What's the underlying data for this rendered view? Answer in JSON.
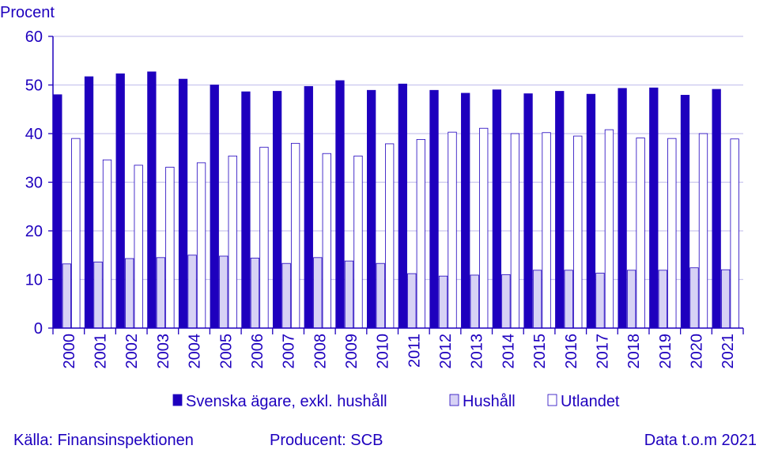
{
  "chart_data": {
    "type": "bar",
    "ylabel": "Procent",
    "ylim": [
      0,
      60
    ],
    "yticks": [
      0,
      10,
      20,
      30,
      40,
      50,
      60
    ],
    "grid": true,
    "legend_position": "bottom",
    "categories": [
      "2000",
      "2001",
      "2002",
      "2003",
      "2004",
      "2005",
      "2006",
      "2007",
      "2008",
      "2009",
      "2010",
      "2011",
      "2012",
      "2013",
      "2014",
      "2015",
      "2016",
      "2017",
      "2018",
      "2019",
      "2020",
      "2021"
    ],
    "series": [
      {
        "name": "Svenska ägare, exkl. hushåll",
        "color": "#1e00be",
        "values": [
          48.0,
          51.7,
          52.3,
          52.7,
          51.2,
          50.0,
          48.6,
          48.7,
          49.7,
          50.9,
          48.9,
          50.2,
          48.9,
          48.3,
          49.0,
          48.2,
          48.7,
          48.1,
          49.3,
          49.4,
          47.9,
          49.1
        ]
      },
      {
        "name": "Hushåll",
        "color": "#d7d2f5",
        "values": [
          13.2,
          13.6,
          14.3,
          14.5,
          15.0,
          14.8,
          14.4,
          13.3,
          14.5,
          13.8,
          13.3,
          11.2,
          10.7,
          10.9,
          11.0,
          11.9,
          11.9,
          11.3,
          11.9,
          11.9,
          12.4,
          12.0
        ]
      },
      {
        "name": "Utlandet",
        "color": "#ffffff",
        "values": [
          39.0,
          34.6,
          33.5,
          33.1,
          34.0,
          35.4,
          37.2,
          38.0,
          35.9,
          35.4,
          37.9,
          38.8,
          40.3,
          41.1,
          40.0,
          40.2,
          39.5,
          40.8,
          39.1,
          39.0,
          40.0,
          38.9
        ]
      }
    ]
  },
  "footer": {
    "source": "Källa: Finansinspektionen",
    "producer": "Producent: SCB",
    "data_until": "Data t.o.m 2021"
  }
}
